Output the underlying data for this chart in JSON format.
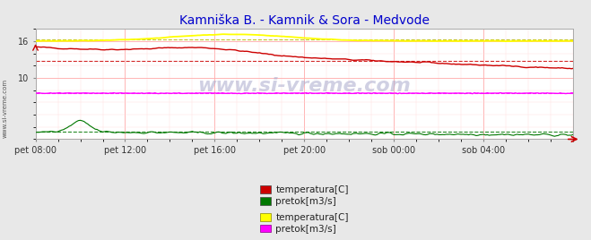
{
  "title": "Kamniška B. - Kamnik & Sora - Medvode",
  "title_color": "#0000cc",
  "bg_color": "#e8e8e8",
  "plot_bg_color": "#ffffff",
  "grid_major_color": "#ffaaaa",
  "grid_minor_color": "#ffdddd",
  "ylim": [
    0,
    18
  ],
  "yticks": [
    10,
    16
  ],
  "xlim": [
    0,
    288
  ],
  "xtick_labels": [
    "pet 08:00",
    "pet 12:00",
    "pet 16:00",
    "pet 20:00",
    "sob 00:00",
    "sob 04:00"
  ],
  "xtick_positions": [
    0,
    48,
    96,
    144,
    192,
    240
  ],
  "temp_kamnik_color": "#cc0000",
  "pretok_kamnik_color": "#007700",
  "temp_sora_color": "#ffff00",
  "pretok_sora_color": "#ff00ff",
  "flow_blue_color": "#0000cc",
  "mean_temp_kamnik": 12.8,
  "mean_pretok_kamnik": 1.2,
  "mean_temp_sora": 16.3,
  "mean_pretok_sora": 7.5,
  "legend": [
    {
      "label": "temperatura[C]",
      "color": "#cc0000"
    },
    {
      "label": "pretok[m3/s]",
      "color": "#007700"
    },
    {
      "label": "temperatura[C]",
      "color": "#ffff00"
    },
    {
      "label": "pretok[m3/s]",
      "color": "#ff00ff"
    }
  ],
  "watermark": "www.si-vreme.com",
  "figsize": [
    6.59,
    2.68
  ],
  "dpi": 100
}
